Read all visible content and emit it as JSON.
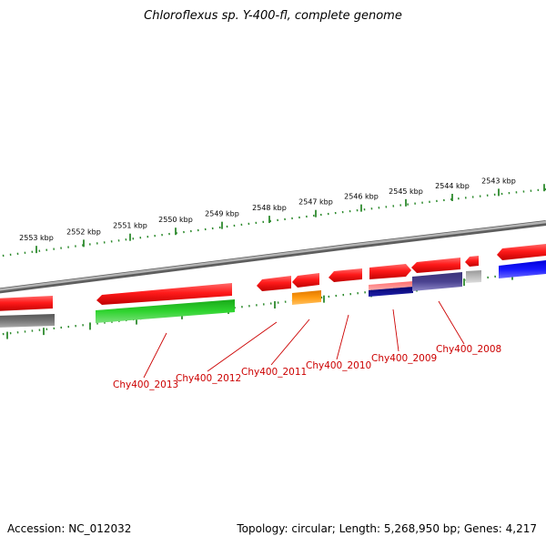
{
  "title": "Chloroflexus sp. Y-400-fl, complete genome",
  "footer": {
    "accession": "Accession: NC_012032",
    "stats": "Topology: circular; Length: 5,268,950 bp; Genes: 4,217"
  },
  "ruler": {
    "unit": "kbp",
    "ticks": [
      "2553 kbp",
      "2552 kbp",
      "2551 kbp",
      "2550 kbp",
      "2549 kbp",
      "2548 kbp",
      "2547 kbp",
      "2546 kbp",
      "2545 kbp",
      "2544 kbp",
      "2543 kbp"
    ]
  },
  "colors": {
    "forward_gene": "#ff0000",
    "gene_label": "#cc0000",
    "ruler_tick": "#2e8b2e",
    "backbone": "#808080"
  },
  "genes": [
    {
      "label": "Chy400_2013"
    },
    {
      "label": "Chy400_2012"
    },
    {
      "label": "Chy400_2011"
    },
    {
      "label": "Chy400_2010"
    },
    {
      "label": "Chy400_2009"
    },
    {
      "label": "Chy400_2008"
    }
  ]
}
